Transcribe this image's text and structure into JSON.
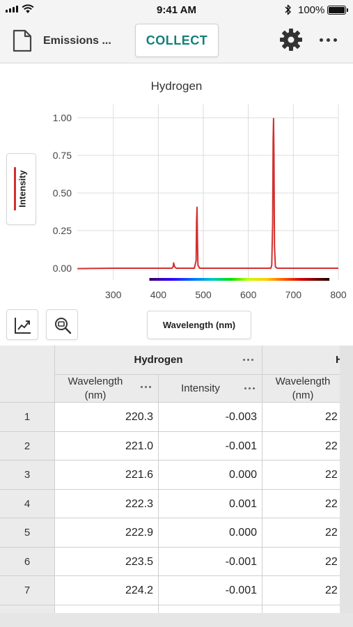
{
  "status_bar": {
    "time": "9:41 AM",
    "battery": "100%"
  },
  "toolbar": {
    "file_name": "Emissions ...",
    "collect_label": "COLLECT"
  },
  "graph": {
    "title": "Hydrogen",
    "y_legend_label": "Intensity",
    "x_legend_label": "Wavelength (nm)",
    "series_color": "#d32f2f"
  },
  "chart_data": {
    "type": "line",
    "title": "Hydrogen",
    "xlabel": "Wavelength (nm)",
    "ylabel": "Intensity",
    "xlim": [
      220,
      800
    ],
    "ylim": [
      0,
      1.15
    ],
    "x_ticks": [
      "300",
      "400",
      "500",
      "600",
      "700",
      "800"
    ],
    "y_ticks": [
      "1.00",
      "0.75",
      "0.50",
      "0.25",
      "0.00"
    ],
    "grid": true,
    "series": [
      {
        "name": "Intensity",
        "color": "#d32f2f",
        "x": [
          220.3,
          300,
          400,
          430,
          433,
          434,
          436,
          440,
          480,
          484,
          485,
          486,
          487,
          488,
          492,
          600,
          650,
          652,
          654,
          655,
          656,
          657,
          658,
          660,
          664,
          700,
          800
        ],
        "y": [
          -0.003,
          0.0,
          0.0,
          0.0,
          0.01,
          0.035,
          0.01,
          0.0,
          0.0,
          0.05,
          0.31,
          0.405,
          0.2,
          0.02,
          0.0,
          0.0,
          0.0,
          0.02,
          0.3,
          0.85,
          0.995,
          0.75,
          0.15,
          0.01,
          0.0,
          0.0,
          0.0
        ]
      }
    ],
    "spectrum_bar": true
  },
  "table": {
    "dataset_name": "Hydrogen",
    "dataset_name_partial": "H",
    "columns": [
      "Wavelength (nm)",
      "Intensity"
    ],
    "column_partial": "Wavelength (nm)",
    "rows": [
      {
        "n": "1",
        "wavelength": "220.3",
        "intensity": "-0.003",
        "partial": "22"
      },
      {
        "n": "2",
        "wavelength": "221.0",
        "intensity": "-0.001",
        "partial": "22"
      },
      {
        "n": "3",
        "wavelength": "221.6",
        "intensity": "0.000",
        "partial": "22"
      },
      {
        "n": "4",
        "wavelength": "222.3",
        "intensity": "0.001",
        "partial": "22"
      },
      {
        "n": "5",
        "wavelength": "222.9",
        "intensity": "0.000",
        "partial": "22"
      },
      {
        "n": "6",
        "wavelength": "223.5",
        "intensity": "-0.001",
        "partial": "22"
      },
      {
        "n": "7",
        "wavelength": "224.2",
        "intensity": "-0.001",
        "partial": "22"
      }
    ]
  }
}
